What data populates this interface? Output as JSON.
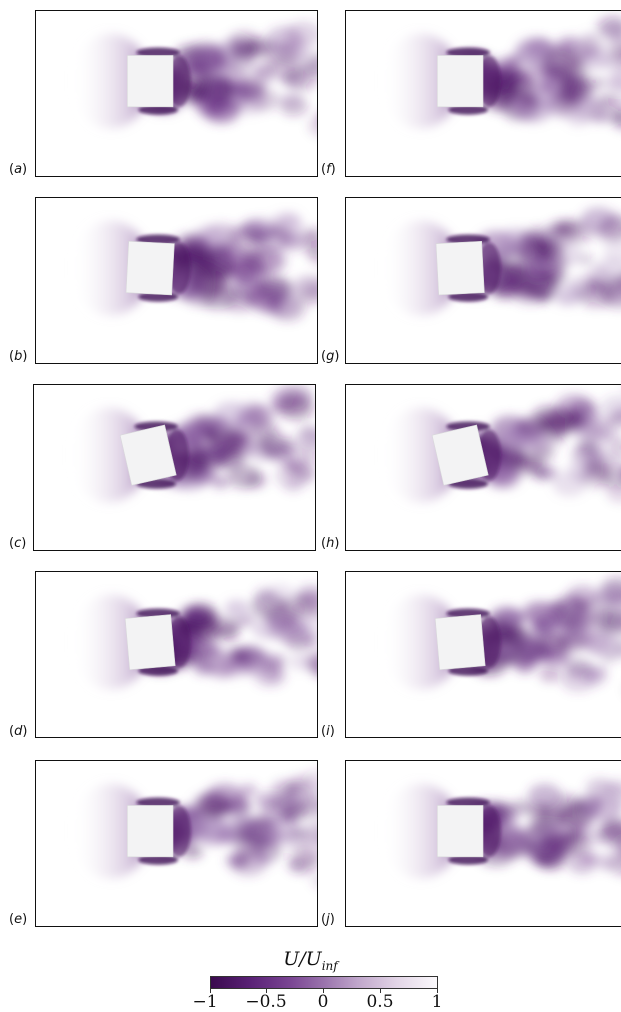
{
  "panels": [
    {
      "label": "a",
      "angle": 0
    },
    {
      "label": "b",
      "angle": 3
    },
    {
      "label": "c",
      "angle": -13
    },
    {
      "label": "d",
      "angle": -5
    },
    {
      "label": "e",
      "angle": 0
    },
    {
      "label": "f",
      "angle": 0
    },
    {
      "label": "g",
      "angle": -3
    },
    {
      "label": "h",
      "angle": -13
    },
    {
      "label": "i",
      "angle": -5
    },
    {
      "label": "j",
      "angle": 0
    }
  ],
  "colorbar": {
    "title_main": "U/U",
    "title_sub": "inf",
    "ticks": [
      "−1",
      "−0.5",
      "0",
      "0.5",
      "1"
    ],
    "min": -1,
    "max": 1,
    "colors": [
      "#3a0a4e",
      "#7a4593",
      "#9a73ad",
      "#c0a6cb",
      "#fbf9fc"
    ]
  }
}
